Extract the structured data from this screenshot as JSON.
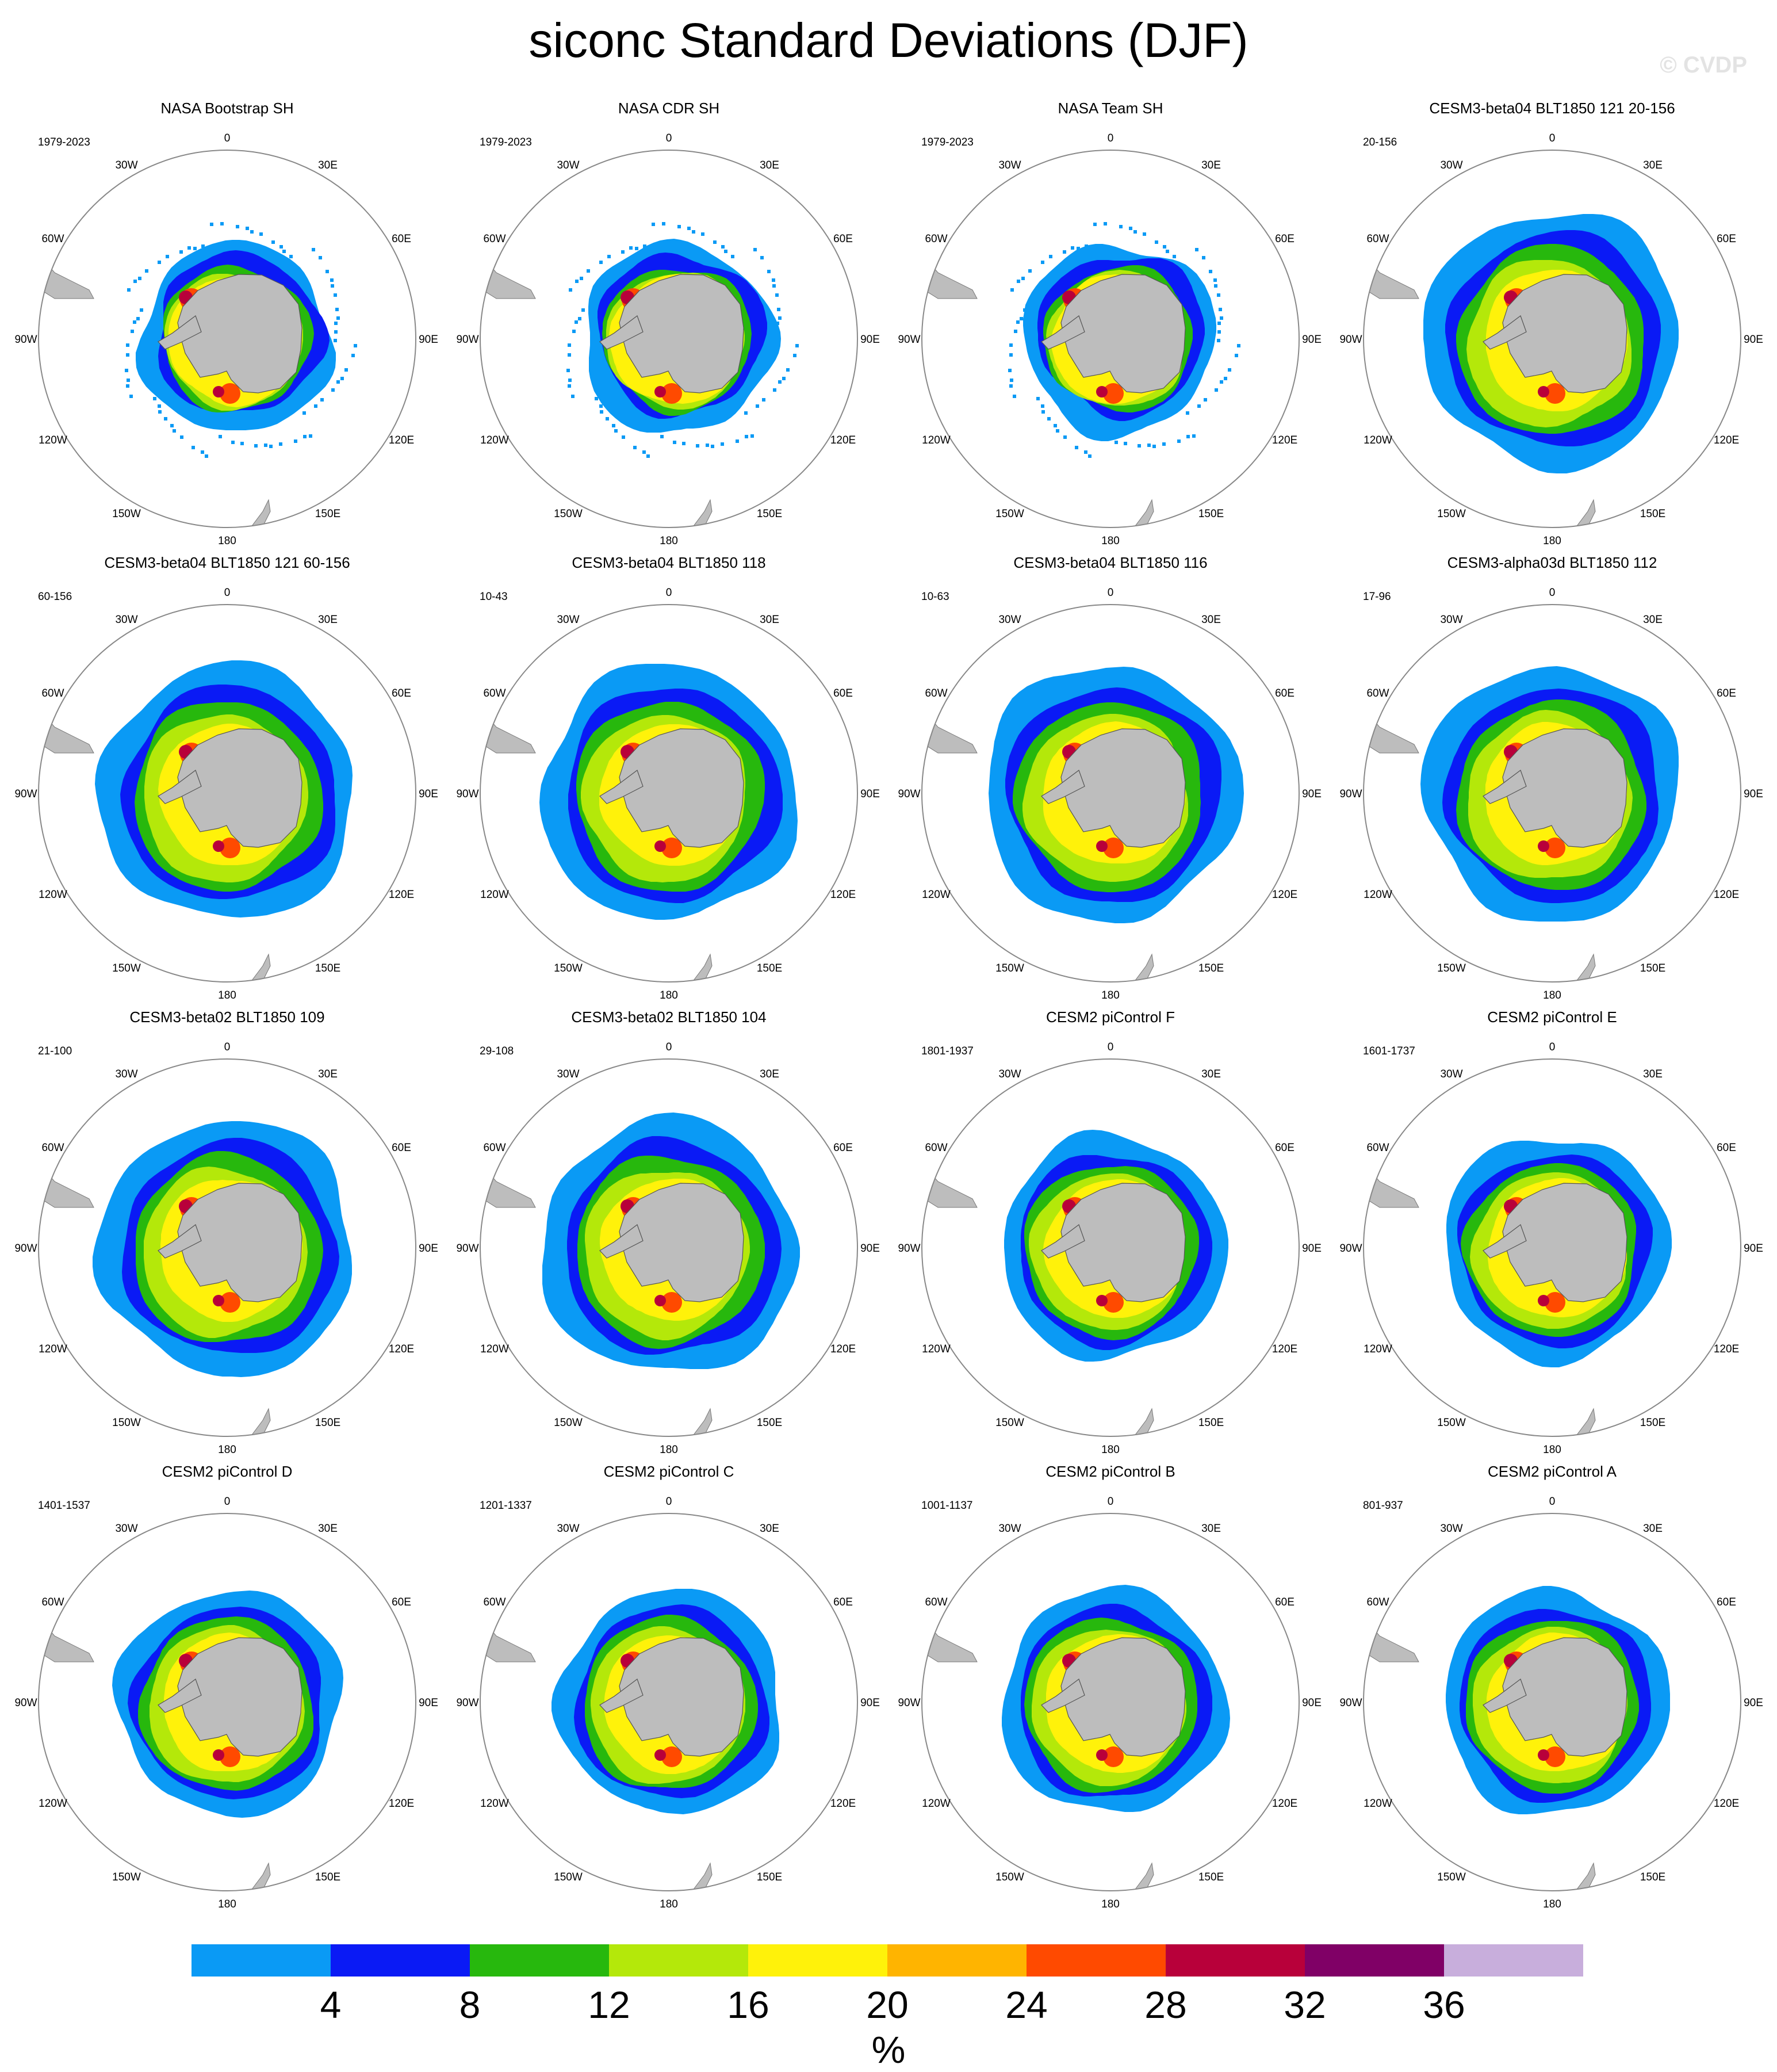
{
  "title": "siconc Standard Deviations (DJF)",
  "watermark": "© CVDP",
  "map_labels": {
    "lon": [
      "0",
      "30E",
      "60E",
      "90E",
      "120E",
      "150E",
      "180",
      "150W",
      "120W",
      "90W",
      "60W",
      "30W"
    ]
  },
  "panels": [
    {
      "title": "NASA Bootstrap SH",
      "period": "1979-2023",
      "style": "obs"
    },
    {
      "title": "NASA CDR SH",
      "period": "1979-2023",
      "style": "obs"
    },
    {
      "title": "NASA Team SH",
      "period": "1979-2023",
      "style": "obs"
    },
    {
      "title": "CESM3-beta04 BLT1850 121 20-156",
      "period": "20-156",
      "style": "model-wide"
    },
    {
      "title": "CESM3-beta04 BLT1850 121 60-156",
      "period": "60-156",
      "style": "model-wide"
    },
    {
      "title": "CESM3-beta04 BLT1850 118",
      "period": "10-43",
      "style": "model-wide"
    },
    {
      "title": "CESM3-beta04 BLT1850 116",
      "period": "10-63",
      "style": "model-wide"
    },
    {
      "title": "CESM3-alpha03d BLT1850 112",
      "period": "17-96",
      "style": "model-wide"
    },
    {
      "title": "CESM3-beta02 BLT1850 109",
      "period": "21-100",
      "style": "model-wide"
    },
    {
      "title": "CESM3-beta02 BLT1850 104",
      "period": "29-108",
      "style": "model-wide"
    },
    {
      "title": "CESM2 piControl F",
      "period": "1801-1937",
      "style": "model-narrow"
    },
    {
      "title": "CESM2 piControl E",
      "period": "1601-1737",
      "style": "model-narrow"
    },
    {
      "title": "CESM2 piControl D",
      "period": "1401-1537",
      "style": "model-narrow"
    },
    {
      "title": "CESM2 piControl C",
      "period": "1201-1337",
      "style": "model-narrow"
    },
    {
      "title": "CESM2 piControl B",
      "period": "1001-1137",
      "style": "model-narrow"
    },
    {
      "title": "CESM2 piControl A",
      "period": "801-937",
      "style": "model-narrow"
    }
  ],
  "chart_data": {
    "type": "heatmap",
    "variable": "siconc",
    "season": "DJF",
    "projection": "south polar stereographic",
    "colorbar": {
      "unit": "%",
      "levels": [
        4,
        8,
        12,
        16,
        20,
        24,
        28,
        32,
        36
      ],
      "tick_labels": [
        "4",
        "8",
        "12",
        "16",
        "20",
        "24",
        "28",
        "32",
        "36"
      ],
      "colors": [
        "#0a9af5",
        "#0a1af5",
        "#27b80d",
        "#b4e80a",
        "#fff20a",
        "#ffb400",
        "#ff4a00",
        "#b8003a",
        "#800066",
        "#c8aedc"
      ]
    }
  }
}
